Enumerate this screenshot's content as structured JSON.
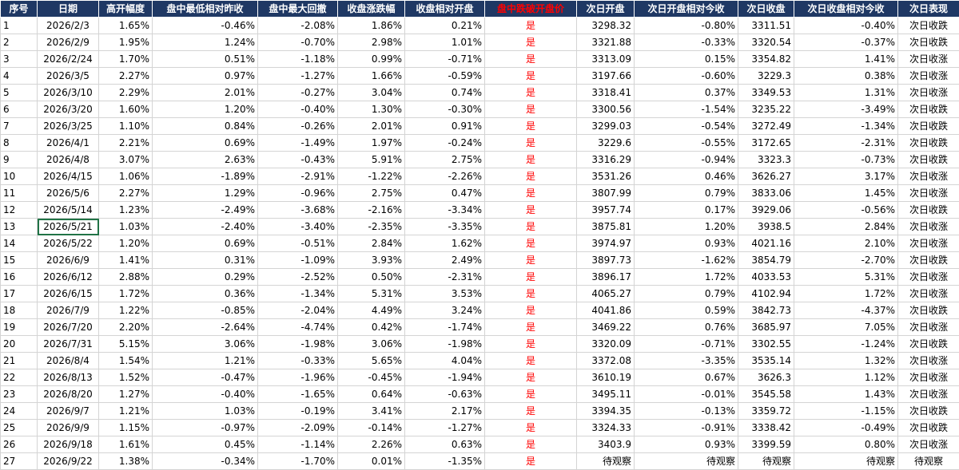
{
  "columns": [
    {
      "label": "序号",
      "align": "l"
    },
    {
      "label": "日期",
      "align": "c"
    },
    {
      "label": "高开幅度",
      "align": "r"
    },
    {
      "label": "盘中最低相对昨收",
      "align": "r"
    },
    {
      "label": "盘中最大回撤",
      "align": "r"
    },
    {
      "label": "收盘涨跌幅",
      "align": "r"
    },
    {
      "label": "收盘相对开盘",
      "align": "r"
    },
    {
      "label": "盘中跌破开盘价",
      "align": "red"
    },
    {
      "label": "次日开盘",
      "align": "r"
    },
    {
      "label": "次日开盘相对今收",
      "align": "r"
    },
    {
      "label": "次日收盘",
      "align": "r"
    },
    {
      "label": "次日收盘相对今收",
      "align": "r"
    },
    {
      "label": "次日表现",
      "align": "c"
    }
  ],
  "header_red_index": 7,
  "selected_cell": {
    "row": 12,
    "col": 1
  },
  "rows": [
    [
      "1",
      "2026/2/3",
      "1.65%",
      "-0.46%",
      "-2.08%",
      "1.86%",
      "0.21%",
      "是",
      "3298.32",
      "-0.80%",
      "3311.51",
      "-0.40%",
      "次日收跌"
    ],
    [
      "2",
      "2026/2/9",
      "1.95%",
      "1.24%",
      "-0.70%",
      "2.98%",
      "1.01%",
      "是",
      "3321.88",
      "-0.33%",
      "3320.54",
      "-0.37%",
      "次日收跌"
    ],
    [
      "3",
      "2026/2/24",
      "1.70%",
      "0.51%",
      "-1.18%",
      "0.99%",
      "-0.71%",
      "是",
      "3313.09",
      "0.15%",
      "3354.82",
      "1.41%",
      "次日收涨"
    ],
    [
      "4",
      "2026/3/5",
      "2.27%",
      "0.97%",
      "-1.27%",
      "1.66%",
      "-0.59%",
      "是",
      "3197.66",
      "-0.60%",
      "3229.3",
      "0.38%",
      "次日收涨"
    ],
    [
      "5",
      "2026/3/10",
      "2.29%",
      "2.01%",
      "-0.27%",
      "3.04%",
      "0.74%",
      "是",
      "3318.41",
      "0.37%",
      "3349.53",
      "1.31%",
      "次日收涨"
    ],
    [
      "6",
      "2026/3/20",
      "1.60%",
      "1.20%",
      "-0.40%",
      "1.30%",
      "-0.30%",
      "是",
      "3300.56",
      "-1.54%",
      "3235.22",
      "-3.49%",
      "次日收跌"
    ],
    [
      "7",
      "2026/3/25",
      "1.10%",
      "0.84%",
      "-0.26%",
      "2.01%",
      "0.91%",
      "是",
      "3299.03",
      "-0.54%",
      "3272.49",
      "-1.34%",
      "次日收跌"
    ],
    [
      "8",
      "2026/4/1",
      "2.21%",
      "0.69%",
      "-1.49%",
      "1.97%",
      "-0.24%",
      "是",
      "3229.6",
      "-0.55%",
      "3172.65",
      "-2.31%",
      "次日收跌"
    ],
    [
      "9",
      "2026/4/8",
      "3.07%",
      "2.63%",
      "-0.43%",
      "5.91%",
      "2.75%",
      "是",
      "3316.29",
      "-0.94%",
      "3323.3",
      "-0.73%",
      "次日收跌"
    ],
    [
      "10",
      "2026/4/15",
      "1.06%",
      "-1.89%",
      "-2.91%",
      "-1.22%",
      "-2.26%",
      "是",
      "3531.26",
      "0.46%",
      "3626.27",
      "3.17%",
      "次日收涨"
    ],
    [
      "11",
      "2026/5/6",
      "2.27%",
      "1.29%",
      "-0.96%",
      "2.75%",
      "0.47%",
      "是",
      "3807.99",
      "0.79%",
      "3833.06",
      "1.45%",
      "次日收涨"
    ],
    [
      "12",
      "2026/5/14",
      "1.23%",
      "-2.49%",
      "-3.68%",
      "-2.16%",
      "-3.34%",
      "是",
      "3957.74",
      "0.17%",
      "3929.06",
      "-0.56%",
      "次日收跌"
    ],
    [
      "13",
      "2026/5/21",
      "1.03%",
      "-2.40%",
      "-3.40%",
      "-2.35%",
      "-3.35%",
      "是",
      "3875.81",
      "1.20%",
      "3938.5",
      "2.84%",
      "次日收涨"
    ],
    [
      "14",
      "2026/5/22",
      "1.20%",
      "0.69%",
      "-0.51%",
      "2.84%",
      "1.62%",
      "是",
      "3974.97",
      "0.93%",
      "4021.16",
      "2.10%",
      "次日收涨"
    ],
    [
      "15",
      "2026/6/9",
      "1.41%",
      "0.31%",
      "-1.09%",
      "3.93%",
      "2.49%",
      "是",
      "3897.73",
      "-1.62%",
      "3854.79",
      "-2.70%",
      "次日收跌"
    ],
    [
      "16",
      "2026/6/12",
      "2.88%",
      "0.29%",
      "-2.52%",
      "0.50%",
      "-2.31%",
      "是",
      "3896.17",
      "1.72%",
      "4033.53",
      "5.31%",
      "次日收涨"
    ],
    [
      "17",
      "2026/6/15",
      "1.72%",
      "0.36%",
      "-1.34%",
      "5.31%",
      "3.53%",
      "是",
      "4065.27",
      "0.79%",
      "4102.94",
      "1.72%",
      "次日收涨"
    ],
    [
      "18",
      "2026/7/9",
      "1.22%",
      "-0.85%",
      "-2.04%",
      "4.49%",
      "3.24%",
      "是",
      "4041.86",
      "0.59%",
      "3842.73",
      "-4.37%",
      "次日收跌"
    ],
    [
      "19",
      "2026/7/20",
      "2.20%",
      "-2.64%",
      "-4.74%",
      "0.42%",
      "-1.74%",
      "是",
      "3469.22",
      "0.76%",
      "3685.97",
      "7.05%",
      "次日收涨"
    ],
    [
      "20",
      "2026/7/31",
      "5.15%",
      "3.06%",
      "-1.98%",
      "3.06%",
      "-1.98%",
      "是",
      "3320.09",
      "-0.71%",
      "3302.55",
      "-1.24%",
      "次日收跌"
    ],
    [
      "21",
      "2026/8/4",
      "1.54%",
      "1.21%",
      "-0.33%",
      "5.65%",
      "4.04%",
      "是",
      "3372.08",
      "-3.35%",
      "3535.14",
      "1.32%",
      "次日收涨"
    ],
    [
      "22",
      "2026/8/13",
      "1.52%",
      "-0.47%",
      "-1.96%",
      "-0.45%",
      "-1.94%",
      "是",
      "3610.19",
      "0.67%",
      "3626.3",
      "1.12%",
      "次日收涨"
    ],
    [
      "23",
      "2026/8/20",
      "1.27%",
      "-0.40%",
      "-1.65%",
      "0.64%",
      "-0.63%",
      "是",
      "3495.11",
      "-0.01%",
      "3545.58",
      "1.43%",
      "次日收涨"
    ],
    [
      "24",
      "2026/9/7",
      "1.21%",
      "1.03%",
      "-0.19%",
      "3.41%",
      "2.17%",
      "是",
      "3394.35",
      "-0.13%",
      "3359.72",
      "-1.15%",
      "次日收跌"
    ],
    [
      "25",
      "2026/9/9",
      "1.15%",
      "-0.97%",
      "-2.09%",
      "-0.14%",
      "-1.27%",
      "是",
      "3324.33",
      "-0.91%",
      "3338.42",
      "-0.49%",
      "次日收跌"
    ],
    [
      "26",
      "2026/9/18",
      "1.61%",
      "0.45%",
      "-1.14%",
      "2.26%",
      "0.63%",
      "是",
      "3403.9",
      "0.93%",
      "3399.59",
      "0.80%",
      "次日收涨"
    ],
    [
      "27",
      "2026/9/22",
      "1.38%",
      "-0.34%",
      "-1.70%",
      "0.01%",
      "-1.35%",
      "是",
      "待观察",
      "待观察",
      "待观察",
      "待观察",
      "待观察"
    ]
  ]
}
